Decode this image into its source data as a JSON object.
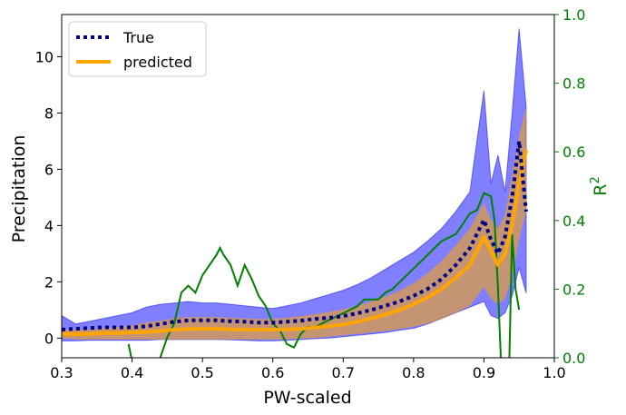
{
  "chart_data": {
    "type": "line",
    "xlabel": "PW-scaled",
    "ylabel": "Precipitation",
    "y2label_base": "R",
    "y2label_sup": "2",
    "xlim": [
      0.3,
      1.0
    ],
    "ylim": [
      -0.7,
      11.5
    ],
    "y2lim": [
      0.0,
      1.0
    ],
    "xticks": [
      "0.3",
      "0.4",
      "0.5",
      "0.6",
      "0.7",
      "0.8",
      "0.9",
      "1.0"
    ],
    "yticks": [
      "0",
      "2",
      "4",
      "6",
      "8",
      "10"
    ],
    "y2ticks": [
      "0.0",
      "0.2",
      "0.4",
      "0.6",
      "0.8",
      "1.0"
    ],
    "legend": {
      "location": "upper-left",
      "entries": [
        "True",
        "predicted"
      ]
    },
    "colors": {
      "true": "#000080",
      "predicted": "#ffa500",
      "true_band": "#0000ff",
      "pred_band": "#ffa500",
      "r2": "#008000"
    },
    "x": [
      0.3,
      0.32,
      0.34,
      0.36,
      0.38,
      0.4,
      0.42,
      0.44,
      0.46,
      0.48,
      0.5,
      0.52,
      0.54,
      0.56,
      0.58,
      0.6,
      0.62,
      0.64,
      0.66,
      0.68,
      0.7,
      0.72,
      0.74,
      0.76,
      0.78,
      0.8,
      0.82,
      0.84,
      0.86,
      0.88,
      0.9,
      0.91,
      0.92,
      0.93,
      0.94,
      0.95,
      0.96
    ],
    "series": [
      {
        "name": "True",
        "values": [
          0.3,
          0.33,
          0.36,
          0.38,
          0.38,
          0.38,
          0.42,
          0.5,
          0.58,
          0.63,
          0.63,
          0.63,
          0.6,
          0.58,
          0.55,
          0.55,
          0.58,
          0.62,
          0.68,
          0.72,
          0.78,
          0.88,
          1.0,
          1.15,
          1.3,
          1.5,
          1.75,
          2.1,
          2.6,
          3.2,
          4.2,
          3.5,
          3.0,
          3.6,
          5.0,
          7.0,
          4.5
        ],
        "band_low": [
          -0.1,
          -0.1,
          -0.08,
          -0.08,
          -0.08,
          -0.08,
          -0.08,
          -0.05,
          -0.05,
          -0.05,
          -0.05,
          -0.05,
          -0.06,
          -0.08,
          -0.1,
          -0.1,
          -0.08,
          -0.05,
          -0.02,
          0.0,
          0.05,
          0.1,
          0.15,
          0.2,
          0.28,
          0.35,
          0.5,
          0.7,
          0.9,
          1.1,
          1.3,
          0.8,
          0.7,
          0.9,
          1.5,
          2.5,
          1.6
        ],
        "band_high": [
          0.8,
          0.5,
          0.6,
          0.7,
          0.8,
          0.9,
          1.1,
          1.2,
          1.25,
          1.3,
          1.25,
          1.25,
          1.2,
          1.15,
          1.1,
          1.05,
          1.15,
          1.25,
          1.4,
          1.55,
          1.7,
          1.9,
          2.15,
          2.45,
          2.75,
          3.05,
          3.45,
          3.9,
          4.5,
          5.2,
          8.8,
          5.5,
          6.5,
          5.2,
          8.0,
          11.0,
          8.2
        ]
      },
      {
        "name": "predicted",
        "values": [
          0.15,
          0.15,
          0.15,
          0.18,
          0.18,
          0.2,
          0.22,
          0.25,
          0.3,
          0.32,
          0.33,
          0.33,
          0.31,
          0.3,
          0.3,
          0.3,
          0.31,
          0.33,
          0.37,
          0.42,
          0.48,
          0.58,
          0.7,
          0.84,
          1.0,
          1.2,
          1.45,
          1.75,
          2.15,
          2.6,
          3.6,
          3.1,
          2.6,
          3.0,
          4.0,
          5.5,
          6.7
        ],
        "band_low": [
          0.0,
          -0.05,
          -0.05,
          -0.05,
          -0.05,
          -0.05,
          -0.05,
          -0.05,
          -0.05,
          -0.05,
          -0.05,
          -0.05,
          -0.05,
          -0.05,
          -0.05,
          -0.05,
          -0.05,
          -0.02,
          0.0,
          0.05,
          0.1,
          0.15,
          0.2,
          0.25,
          0.32,
          0.4,
          0.52,
          0.68,
          0.9,
          1.15,
          1.8,
          1.4,
          1.2,
          1.4,
          2.2,
          3.5,
          4.5
        ],
        "band_high": [
          0.3,
          0.3,
          0.3,
          0.35,
          0.4,
          0.45,
          0.55,
          0.62,
          0.7,
          0.75,
          0.75,
          0.75,
          0.72,
          0.7,
          0.68,
          0.68,
          0.72,
          0.78,
          0.85,
          0.93,
          1.02,
          1.15,
          1.3,
          1.48,
          1.68,
          1.95,
          2.3,
          2.75,
          3.3,
          3.9,
          4.8,
          4.2,
          3.9,
          4.4,
          5.8,
          7.2,
          8.2
        ]
      },
      {
        "name": "",
        "axis": "right",
        "x": [
          0.3,
          0.39,
          0.395,
          0.4,
          0.43,
          0.44,
          0.45,
          0.46,
          0.47,
          0.48,
          0.49,
          0.5,
          0.51,
          0.52,
          0.525,
          0.53,
          0.54,
          0.55,
          0.56,
          0.57,
          0.58,
          0.59,
          0.6,
          0.61,
          0.62,
          0.63,
          0.64,
          0.65,
          0.66,
          0.67,
          0.68,
          0.69,
          0.7,
          0.71,
          0.72,
          0.73,
          0.74,
          0.75,
          0.76,
          0.77,
          0.78,
          0.79,
          0.8,
          0.81,
          0.82,
          0.83,
          0.84,
          0.85,
          0.86,
          0.87,
          0.88,
          0.89,
          0.9,
          0.91,
          0.915,
          0.92,
          0.925,
          0.93,
          0.935,
          0.94,
          0.945,
          0.95
        ],
        "values": [
          null,
          null,
          0.04,
          -0.01,
          null,
          0.0,
          0.06,
          0.1,
          0.19,
          0.21,
          0.19,
          0.24,
          0.27,
          0.3,
          0.32,
          0.3,
          0.27,
          0.21,
          0.27,
          0.23,
          0.18,
          0.15,
          0.1,
          0.08,
          0.04,
          0.03,
          0.07,
          0.09,
          0.09,
          0.1,
          0.11,
          0.12,
          0.13,
          0.14,
          0.15,
          0.17,
          0.17,
          0.17,
          0.19,
          0.2,
          0.22,
          0.24,
          0.26,
          0.28,
          0.3,
          0.32,
          0.34,
          0.35,
          0.36,
          0.39,
          0.42,
          0.43,
          0.48,
          0.47,
          0.4,
          0.2,
          -0.05,
          0.0,
          -0.1,
          0.36,
          0.2,
          0.14
        ]
      }
    ]
  }
}
